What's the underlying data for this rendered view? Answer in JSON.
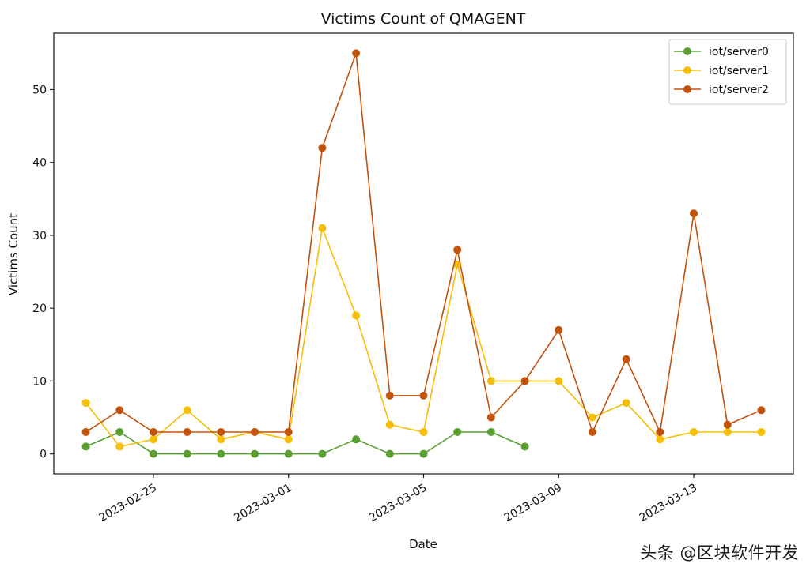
{
  "chart_data": {
    "type": "line",
    "title": "Victims Count of QMAGENT",
    "xlabel": "Date",
    "ylabel": "Victims Count",
    "x_dates": [
      "2023-02-23",
      "2023-02-24",
      "2023-02-25",
      "2023-02-26",
      "2023-02-27",
      "2023-02-28",
      "2023-03-01",
      "2023-03-02",
      "2023-03-03",
      "2023-03-04",
      "2023-03-05",
      "2023-03-06",
      "2023-03-07",
      "2023-03-08",
      "2023-03-09",
      "2023-03-10",
      "2023-03-11",
      "2023-03-12",
      "2023-03-13",
      "2023-03-14",
      "2023-03-15"
    ],
    "xticks": [
      "2023-02-25",
      "2023-03-01",
      "2023-03-05",
      "2023-03-09",
      "2023-03-13"
    ],
    "xtick_index": [
      2,
      6,
      10,
      14,
      18
    ],
    "yticks": [
      0,
      10,
      20,
      30,
      40,
      50
    ],
    "ylim": [
      -2.75,
      57.75
    ],
    "xlim": [
      -0.95,
      20.95
    ],
    "legend_position": "top-right",
    "series": [
      {
        "name": "iot/server0",
        "color": "#5a9e32",
        "values": [
          1,
          3,
          0,
          0,
          0,
          0,
          0,
          0,
          2,
          0,
          0,
          3,
          3,
          1,
          null,
          null,
          null,
          null,
          null,
          null,
          null
        ]
      },
      {
        "name": "iot/server1",
        "color": "#f5bf08",
        "values": [
          7,
          1,
          2,
          6,
          2,
          3,
          2,
          31,
          19,
          4,
          3,
          26,
          10,
          10,
          10,
          5,
          7,
          2,
          3,
          3,
          3
        ]
      },
      {
        "name": "iot/server2",
        "color": "#c2520c",
        "values": [
          3,
          6,
          3,
          3,
          3,
          3,
          3,
          42,
          55,
          8,
          8,
          28,
          5,
          10,
          17,
          3,
          13,
          3,
          33,
          4,
          6
        ]
      }
    ]
  },
  "watermark": "头条 @区块软件开发"
}
